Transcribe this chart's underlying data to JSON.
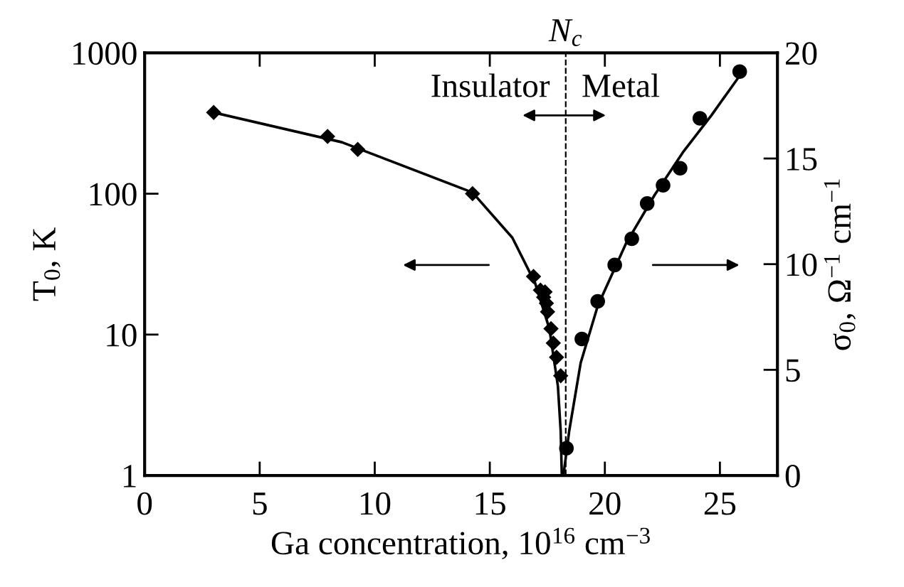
{
  "chart_data": {
    "type": "scatter",
    "xlabel": "Ga concentration, 10$^{16}$ cm$^{−3}$",
    "ylabel": "T$_{0}$, K",
    "y2label": "σ$_{0}$, Ω$^{−1}$ cm$^{−1}$",
    "annotations": [
      "Insulator",
      "Metal"
    ],
    "xlim": [
      0,
      27.5
    ],
    "xticks": [
      0,
      5,
      10,
      15,
      20,
      25
    ],
    "log": "y",
    "ylim": [
      1,
      1000
    ],
    "yticks": [
      1,
      10,
      100,
      1000
    ],
    "y2lim": [
      0,
      20
    ],
    "y2ticks": [
      0,
      5,
      10,
      15,
      20
    ],
    "grid": false,
    "ref_lines": [
      {
        "axis": "x",
        "value": 18.3,
        "label": "N$_{c}$",
        "color": "#000000",
        "line_style": "dashed"
      }
    ],
    "series": [
      {
        "marker": "diamond",
        "color": "#000000",
        "x": [
          3.0,
          7.95,
          9.26,
          14.25,
          16.9,
          17.2,
          17.4,
          17.34,
          17.46,
          17.51,
          17.66,
          17.76,
          17.9,
          18.08
        ],
        "values": [
          377,
          255,
          206,
          100,
          25.9,
          20.7,
          20.1,
          18.4,
          16.7,
          14.5,
          11.0,
          8.7,
          6.9,
          5.1
        ]
      },
      {
        "type": "line",
        "marker": "none",
        "line_style": "solid",
        "color": "#000000",
        "x": [
          3.0,
          8.57,
          14.25,
          15.98,
          16.97,
          17.59,
          17.96,
          18.08,
          18.13
        ],
        "values": [
          377,
          232,
          102,
          48.7,
          23.2,
          11.0,
          4.3,
          2.07,
          1
        ]
      },
      {
        "axis": "y2",
        "marker": "circle",
        "color": "#000000",
        "x": [
          18.33,
          19.0,
          19.69,
          20.43,
          21.17,
          21.84,
          22.53,
          23.27,
          24.13,
          25.86
        ],
        "values": [
          1.29,
          6.46,
          8.24,
          9.96,
          11.2,
          12.87,
          13.73,
          14.54,
          16.9,
          19.11
        ]
      },
      {
        "type": "line",
        "axis": "y2",
        "marker": "none",
        "line_style": "solid",
        "color": "#000000",
        "x": [
          18.2,
          18.45,
          18.95,
          19.69,
          20.92,
          22.16,
          23.39,
          24.63,
          25.86
        ],
        "values": [
          0,
          2.1,
          5.33,
          8.02,
          10.98,
          13.27,
          15.29,
          17.04,
          18.92
        ]
      }
    ]
  }
}
